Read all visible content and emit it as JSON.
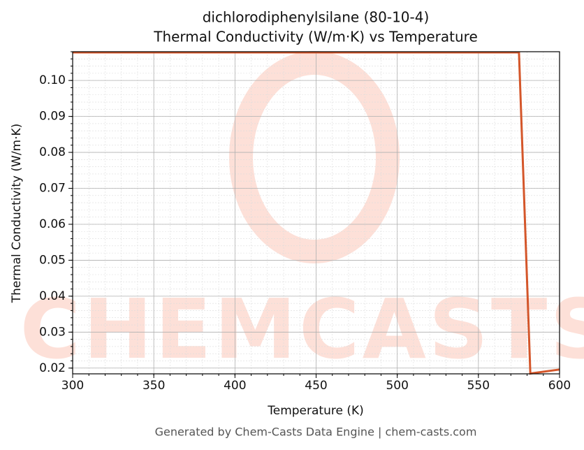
{
  "chart_data": {
    "type": "line",
    "title": "dichlorodiphenylsilane (80-10-4)",
    "subtitle": "Thermal Conductivity (W/m·K) vs Temperature",
    "x_label": "Temperature (K)",
    "y_label": "Thermal Conductivity (W/m·K)",
    "footer": "Generated by Chem-Casts Data Engine | chem-casts.com",
    "watermark": "CHEMCASTS",
    "x": [
      300,
      575,
      582,
      600
    ],
    "series": [
      {
        "name": "Thermal Conductivity",
        "color": "#d4562a",
        "values": [
          0.1078,
          0.1078,
          0.0185,
          0.0196
        ]
      }
    ],
    "xlim": [
      300,
      600
    ],
    "xticks": [
      300,
      350,
      400,
      450,
      500,
      550,
      600
    ],
    "ylim": [
      0.0184,
      0.108
    ],
    "yticks": [
      0.02,
      0.03,
      0.04,
      0.05,
      0.06,
      0.07,
      0.08,
      0.09,
      {
        "value": 0.1,
        "label": "0.10"
      }
    ],
    "grid": true
  }
}
